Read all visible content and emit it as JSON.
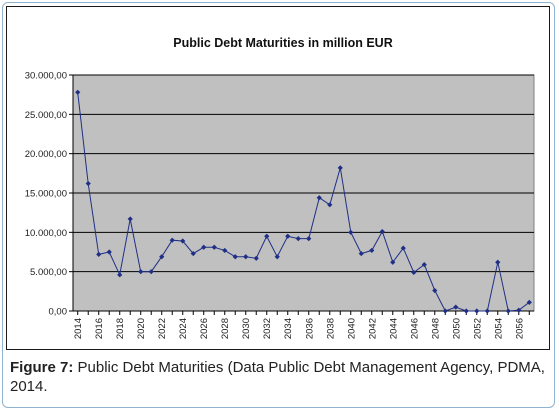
{
  "caption": {
    "label": "Figure 7:",
    "text": " Public Debt Maturities (Data Public Debt Management Agency, PDMA, 2014."
  },
  "chart_data": {
    "type": "line",
    "title": "Public Debt Maturities in million EUR",
    "xlabel": "",
    "ylabel": "",
    "ylim": [
      0,
      30000
    ],
    "y_ticks": [
      "0,00",
      "5.000,00",
      "10.000,00",
      "15.000,00",
      "20.000,00",
      "25.000,00",
      "30.000,00"
    ],
    "x_tick_labels": [
      "2014",
      "2016",
      "2018",
      "2020",
      "2022",
      "2024",
      "2026",
      "2028",
      "2030",
      "2032",
      "2034",
      "2036",
      "2038",
      "2040",
      "2042",
      "2044",
      "2046",
      "2048",
      "2050",
      "2052",
      "2054",
      "2056"
    ],
    "grid": "horizontal",
    "plot_background": "#c0c0c0",
    "series_color": "#1f2f86",
    "series": [
      {
        "x": [
          2014,
          2015,
          2016,
          2017,
          2018,
          2019,
          2020,
          2021,
          2022,
          2023,
          2024,
          2025,
          2026,
          2027,
          2028,
          2029,
          2030,
          2031,
          2032,
          2033,
          2034,
          2035,
          2036,
          2037,
          2038,
          2039,
          2040,
          2041,
          2042,
          2043,
          2044,
          2045,
          2046,
          2047,
          2048,
          2049,
          2050,
          2051,
          2052,
          2053,
          2054,
          2055,
          2056,
          2057
        ],
        "values": [
          27800,
          16200,
          7200,
          7500,
          4600,
          11700,
          5000,
          5000,
          6900,
          9000,
          8900,
          7300,
          8100,
          8100,
          7700,
          6900,
          6900,
          6700,
          9500,
          6900,
          9500,
          9200,
          9200,
          14400,
          13500,
          18200,
          10000,
          7300,
          7700,
          10100,
          6200,
          8000,
          4900,
          5900,
          2600,
          0,
          500,
          0,
          0,
          0,
          6200,
          0,
          100,
          1100
        ]
      }
    ]
  }
}
